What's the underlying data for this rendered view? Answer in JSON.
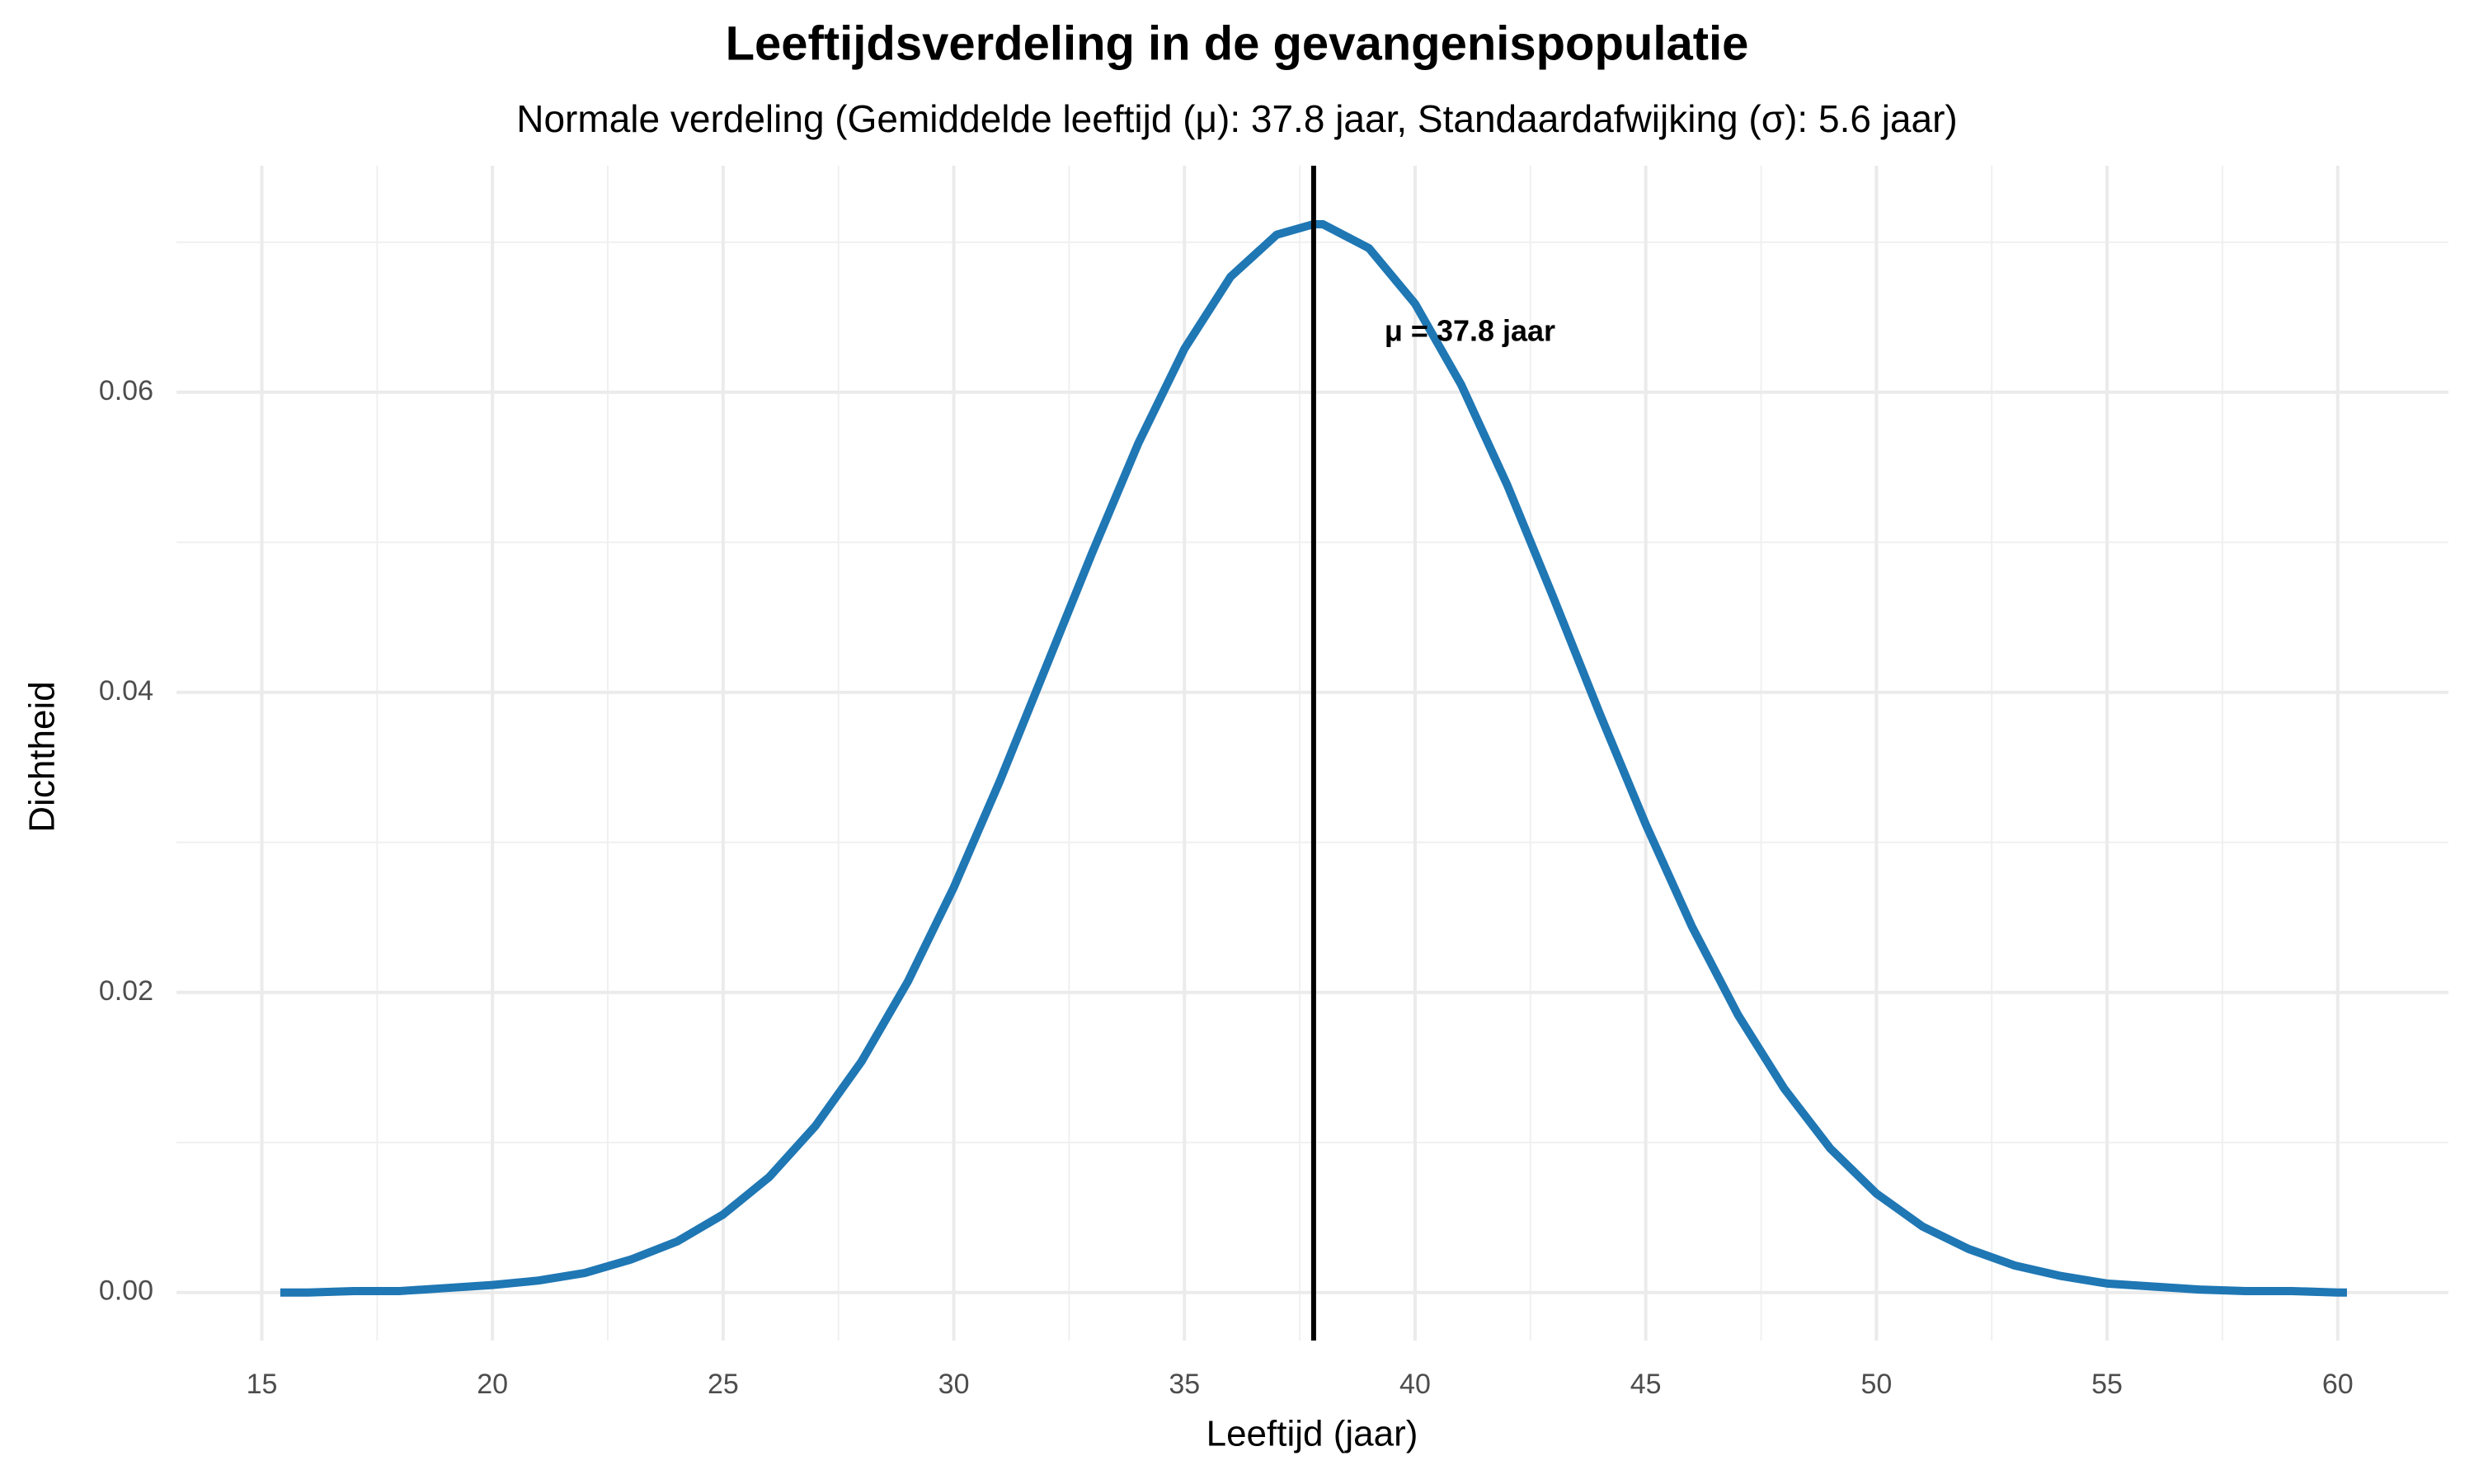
{
  "chart_data": {
    "type": "line",
    "title": "Leeftijdsverdeling in de gevangenispopulatie",
    "subtitle": "Normale verdeling (Gemiddelde leeftijd (μ): 37.8 jaar, Standaardafwijking (σ): 5.6 jaar)",
    "x_label": "Leeftijd (jaar)",
    "y_label": "Dichtheid",
    "x": [
      15.4,
      16,
      17,
      18,
      19,
      20,
      21,
      22,
      23,
      24,
      25,
      26,
      27,
      28,
      29,
      30,
      31,
      32,
      33,
      34,
      35,
      36,
      37,
      37.8,
      38,
      39,
      40,
      41,
      42,
      43,
      44,
      45,
      46,
      47,
      48,
      49,
      50,
      51,
      52,
      53,
      54,
      55,
      56,
      57,
      58,
      59,
      60,
      60.2
    ],
    "series": [
      {
        "name": "Dichtheid",
        "color": "#1f77b4",
        "values": [
          0.0,
          0.0,
          0.0001,
          0.0001,
          0.0003,
          0.0005,
          0.0008,
          0.0013,
          0.0022,
          0.0034,
          0.0052,
          0.0077,
          0.0111,
          0.0154,
          0.0207,
          0.027,
          0.0341,
          0.0417,
          0.0493,
          0.0566,
          0.0629,
          0.0677,
          0.0705,
          0.0712,
          0.0712,
          0.0696,
          0.0659,
          0.0605,
          0.0538,
          0.0463,
          0.0386,
          0.0312,
          0.0244,
          0.0185,
          0.0136,
          0.0096,
          0.0066,
          0.0044,
          0.0029,
          0.0018,
          0.0011,
          0.0006,
          0.0004,
          0.0002,
          0.0001,
          0.0001,
          0.0,
          0.0
        ]
      }
    ],
    "mean_line": {
      "x": 37.8,
      "label": "μ = 37.8 jaar",
      "color": "#000000"
    },
    "xlim": [
      13.15,
      62.4
    ],
    "ylim": [
      -0.0032,
      0.0751
    ],
    "xticks": [
      15,
      20,
      25,
      30,
      35,
      40,
      45,
      50,
      55,
      60
    ],
    "yticks": [
      {
        "value": 0,
        "label": "0.00"
      },
      {
        "value": 0.02,
        "label": "0.02"
      },
      {
        "value": 0.04,
        "label": "0.04"
      },
      {
        "value": 0.06,
        "label": "0.06"
      }
    ],
    "grid": true
  }
}
